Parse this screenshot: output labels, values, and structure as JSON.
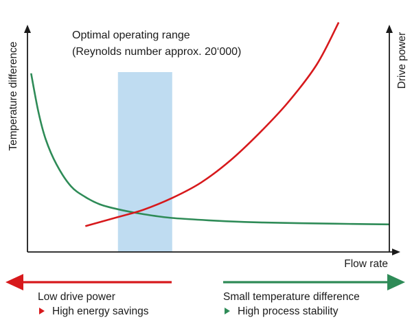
{
  "chart_data": {
    "type": "line",
    "title": "",
    "annotation": {
      "line1": "Optimal operating range",
      "line2": "(Reynolds number approx. 20‘000)"
    },
    "xlabel": "Flow rate",
    "ylabel_left": "Temperature difference",
    "ylabel_right": "Drive power",
    "x_range": [
      0,
      100
    ],
    "y_range": [
      0,
      100
    ],
    "grid": false,
    "optimal_range": {
      "x_start": 25,
      "x_end": 40
    },
    "series": [
      {
        "name": "Temperature difference",
        "color": "#2e8b57",
        "x": [
          1,
          3,
          5,
          8,
          12,
          16,
          20,
          25,
          30,
          35,
          40,
          50,
          60,
          70,
          80,
          90,
          100
        ],
        "values": [
          88,
          67,
          52,
          38,
          26,
          20,
          16,
          13.3,
          11.3,
          9.7,
          8.5,
          7.2,
          6.3,
          5.8,
          5.5,
          5.2,
          5
        ]
      },
      {
        "name": "Drive power",
        "color": "#d7191c",
        "x": [
          16,
          25,
          32,
          40,
          48,
          56,
          64,
          72,
          80,
          86
        ],
        "values": [
          4,
          9,
          13,
          19.5,
          28,
          40,
          55,
          72,
          93,
          116
        ]
      }
    ]
  },
  "footer": {
    "left": {
      "title": "Low drive power",
      "item": "High energy savings",
      "color": "#d7191c"
    },
    "right": {
      "title": "Small temperature difference",
      "item": "High process stability",
      "color": "#2e8b57"
    }
  }
}
